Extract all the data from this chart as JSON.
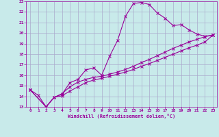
{
  "xlabel": "Windchill (Refroidissement éolien,°C)",
  "background_color": "#c8eaea",
  "grid_color": "#aaaacc",
  "line_color": "#990099",
  "xlim": [
    -0.5,
    23.5
  ],
  "ylim": [
    13,
    23
  ],
  "xticks": [
    0,
    1,
    2,
    3,
    4,
    5,
    6,
    7,
    8,
    9,
    10,
    11,
    12,
    13,
    14,
    15,
    16,
    17,
    18,
    19,
    20,
    21,
    22,
    23
  ],
  "yticks": [
    13,
    14,
    15,
    16,
    17,
    18,
    19,
    20,
    21,
    22,
    23
  ],
  "line1_x": [
    0,
    1,
    2,
    3,
    4,
    5,
    6,
    7,
    8,
    9,
    10,
    11,
    12,
    13,
    14,
    15,
    16,
    17,
    18,
    19,
    20,
    21,
    22,
    23
  ],
  "line1_y": [
    14.6,
    14.1,
    13.0,
    13.9,
    14.2,
    15.3,
    15.6,
    16.5,
    16.7,
    16.0,
    17.8,
    19.3,
    21.6,
    22.8,
    22.9,
    22.7,
    21.9,
    21.4,
    20.7,
    20.8,
    20.3,
    19.9,
    19.7,
    19.8
  ],
  "line2_x": [
    0,
    2,
    3,
    4,
    5,
    6,
    7,
    8,
    9,
    10,
    11,
    12,
    13,
    14,
    15,
    16,
    17,
    18,
    19,
    20,
    21,
    22,
    23
  ],
  "line2_y": [
    14.6,
    13.0,
    13.9,
    14.25,
    14.9,
    15.35,
    15.6,
    15.8,
    15.9,
    16.1,
    16.3,
    16.55,
    16.85,
    17.2,
    17.5,
    17.85,
    18.2,
    18.55,
    18.85,
    19.15,
    19.4,
    19.65,
    19.8
  ],
  "line3_x": [
    0,
    2,
    3,
    4,
    5,
    6,
    7,
    8,
    9,
    10,
    11,
    12,
    13,
    14,
    15,
    16,
    17,
    18,
    19,
    20,
    21,
    22,
    23
  ],
  "line3_y": [
    14.6,
    13.0,
    13.9,
    14.05,
    14.5,
    14.9,
    15.3,
    15.55,
    15.7,
    15.9,
    16.1,
    16.3,
    16.55,
    16.85,
    17.1,
    17.4,
    17.7,
    18.0,
    18.3,
    18.6,
    18.85,
    19.15,
    19.8
  ]
}
